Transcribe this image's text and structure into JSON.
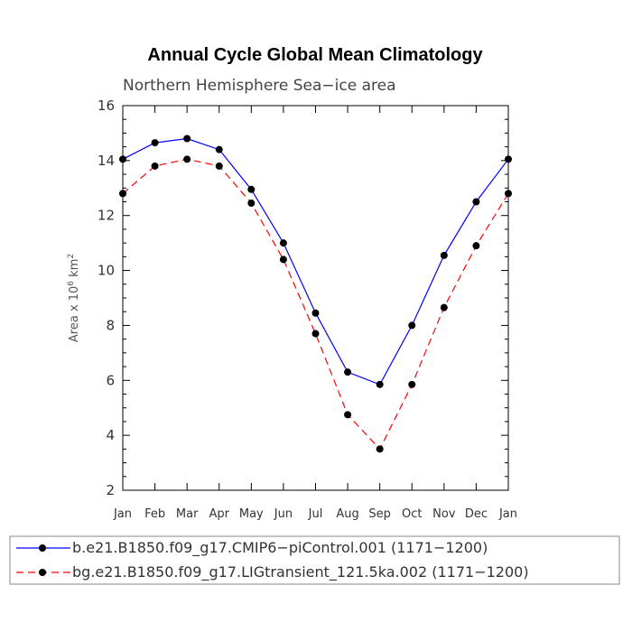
{
  "chart_data": {
    "type": "line",
    "title": "Annual Cycle Global Mean Climatology",
    "subtitle": "Northern Hemisphere Sea−ice area",
    "ylabel": {
      "prefix": "Area x 10",
      "exp1": "6",
      "mid": " km",
      "exp2": "2"
    },
    "categories": [
      "Jan",
      "Feb",
      "Mar",
      "Apr",
      "May",
      "Jun",
      "Jul",
      "Aug",
      "Sep",
      "Oct",
      "Nov",
      "Dec",
      "Jan"
    ],
    "ylim": [
      2,
      16
    ],
    "yticks": [
      2,
      4,
      6,
      8,
      10,
      12,
      14,
      16
    ],
    "series": [
      {
        "name": "b.e21.B1850.f09_g17.CMIP6−piControl.001 (1171−1200)",
        "color": "#0000ff",
        "dash": "solid",
        "values": [
          14.05,
          14.65,
          14.8,
          14.4,
          12.95,
          11.0,
          8.45,
          6.3,
          5.85,
          8.0,
          10.55,
          12.5,
          14.05
        ]
      },
      {
        "name": "bg.e21.B1850.f09_g17.LIGtransient_121.5ka.002 (1171−1200)",
        "color": "#ff0000",
        "dash": "dashed",
        "values": [
          12.8,
          13.8,
          14.05,
          13.8,
          12.45,
          10.4,
          7.7,
          4.75,
          3.5,
          5.85,
          8.65,
          10.9,
          12.8
        ]
      }
    ],
    "legend_position": "bottom"
  }
}
